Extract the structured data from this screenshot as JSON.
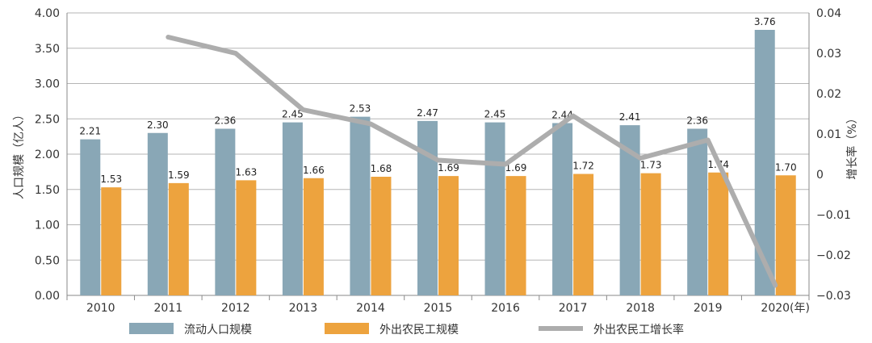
{
  "chart_data": {
    "type": "bar",
    "categories": [
      "2010",
      "2011",
      "2012",
      "2013",
      "2014",
      "2015",
      "2016",
      "2017",
      "2018",
      "2019",
      "2020"
    ],
    "x_unit": "(年)",
    "ylabel": "人口规模（亿人）",
    "y2label": "增长率（%）",
    "ylim": [
      0,
      4
    ],
    "y_ticks": [
      "0.00",
      "0.50",
      "1.00",
      "1.50",
      "2.00",
      "2.50",
      "3.00",
      "3.50",
      "4.00"
    ],
    "y2lim": [
      -0.03,
      0.04
    ],
    "y2_ticks": [
      "0.04",
      "0.03",
      "0.02",
      "0.01",
      "0",
      "−0.01",
      "−0.02",
      "−0.03"
    ],
    "grid": true,
    "legend_position": "bottom",
    "series": [
      {
        "name": "流动人口规模",
        "type": "bar",
        "axis": "left",
        "color": "#89a7b6",
        "values": [
          2.21,
          2.3,
          2.36,
          2.45,
          2.53,
          2.47,
          2.45,
          2.44,
          2.41,
          2.36,
          3.76
        ],
        "labels": [
          "2.21",
          "2.30",
          "2.36",
          "2.45",
          "2.53",
          "2.47",
          "2.45",
          "2.44",
          "2.41",
          "2.36",
          "3.76"
        ]
      },
      {
        "name": "外出农民工规模",
        "type": "bar",
        "axis": "left",
        "color": "#eda33e",
        "values": [
          1.53,
          1.59,
          1.63,
          1.66,
          1.68,
          1.69,
          1.69,
          1.72,
          1.73,
          1.74,
          1.7
        ],
        "labels": [
          "1.53",
          "1.59",
          "1.63",
          "1.66",
          "1.68",
          "1.69",
          "1.69",
          "1.72",
          "1.73",
          "1.74",
          "1.70"
        ]
      },
      {
        "name": "外出农民工增长率",
        "type": "line",
        "axis": "right",
        "color": "#adadad",
        "x": [
          "2011",
          "2012",
          "2013",
          "2014",
          "2015",
          "2016",
          "2017",
          "2018",
          "2019",
          "2020"
        ],
        "values": [
          0.034,
          0.03,
          0.016,
          0.0125,
          0.0035,
          0.0025,
          0.0145,
          0.004,
          0.0085,
          -0.0275
        ]
      }
    ]
  }
}
